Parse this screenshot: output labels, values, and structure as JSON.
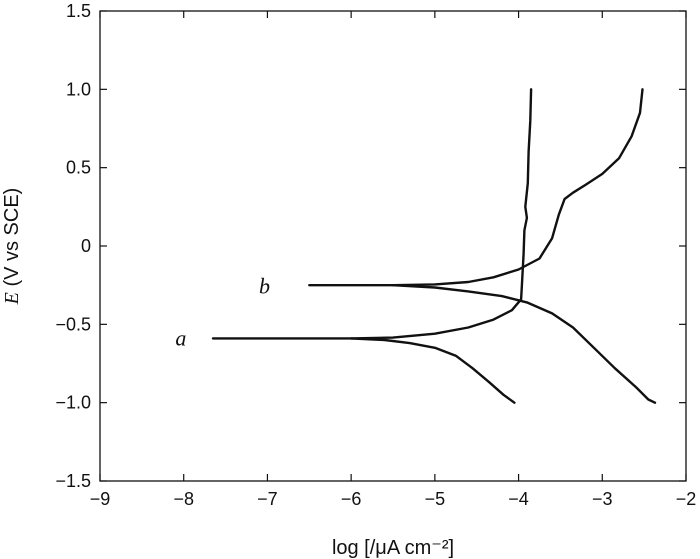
{
  "chart_data": {
    "type": "line",
    "title": "",
    "xlabel": "log [/μA cm⁻²]",
    "ylabel": "E (V vs SCE)",
    "xlim": [
      -9,
      -2
    ],
    "ylim": [
      -1.5,
      1.5
    ],
    "x_ticks": [
      -9,
      -8,
      -7,
      -6,
      -5,
      -4,
      -3,
      -2
    ],
    "y_ticks": [
      -1.5,
      -1.0,
      -0.5,
      0,
      0.5,
      1.0,
      1.5
    ],
    "x_tick_labels": [
      "−9",
      "−8",
      "−7",
      "−6",
      "−5",
      "−4",
      "−3",
      "−2"
    ],
    "y_tick_labels": [
      "−1.5",
      "−1.0",
      "−0.5",
      "0",
      "0.5",
      "1.0",
      "1.5"
    ],
    "grid": false,
    "series": [
      {
        "name": "a",
        "branches": [
          [
            [
              -7.65,
              -0.59
            ],
            [
              -6.8,
              -0.59
            ],
            [
              -6.0,
              -0.59
            ],
            [
              -5.5,
              -0.585
            ],
            [
              -5.0,
              -0.56
            ],
            [
              -4.6,
              -0.52
            ],
            [
              -4.3,
              -0.47
            ],
            [
              -4.08,
              -0.41
            ],
            [
              -3.97,
              -0.34
            ],
            [
              -3.96,
              -0.25
            ],
            [
              -3.94,
              -0.05
            ],
            [
              -3.93,
              0.1
            ],
            [
              -3.9,
              0.18
            ],
            [
              -3.92,
              0.25
            ],
            [
              -3.89,
              0.4
            ],
            [
              -3.88,
              0.6
            ],
            [
              -3.86,
              0.8
            ],
            [
              -3.85,
              1.0
            ]
          ],
          [
            [
              -6.0,
              -0.59
            ],
            [
              -5.6,
              -0.6
            ],
            [
              -5.3,
              -0.62
            ],
            [
              -5.0,
              -0.65
            ],
            [
              -4.75,
              -0.7
            ],
            [
              -4.55,
              -0.78
            ],
            [
              -4.35,
              -0.87
            ],
            [
              -4.18,
              -0.95
            ],
            [
              -4.05,
              -1.0
            ]
          ]
        ]
      },
      {
        "name": "b",
        "branches": [
          [
            [
              -6.5,
              -0.25
            ],
            [
              -6.0,
              -0.25
            ],
            [
              -5.5,
              -0.25
            ],
            [
              -5.0,
              -0.245
            ],
            [
              -4.6,
              -0.23
            ],
            [
              -4.3,
              -0.2
            ],
            [
              -4.0,
              -0.15
            ],
            [
              -3.75,
              -0.08
            ],
            [
              -3.6,
              0.05
            ],
            [
              -3.52,
              0.2
            ],
            [
              -3.45,
              0.3
            ],
            [
              -3.35,
              0.34
            ],
            [
              -3.2,
              0.39
            ],
            [
              -3.0,
              0.46
            ],
            [
              -2.8,
              0.56
            ],
            [
              -2.65,
              0.7
            ],
            [
              -2.55,
              0.85
            ],
            [
              -2.52,
              1.0
            ]
          ],
          [
            [
              -5.5,
              -0.25
            ],
            [
              -5.0,
              -0.265
            ],
            [
              -4.6,
              -0.29
            ],
            [
              -4.2,
              -0.32
            ],
            [
              -3.9,
              -0.36
            ],
            [
              -3.6,
              -0.43
            ],
            [
              -3.35,
              -0.52
            ],
            [
              -3.1,
              -0.65
            ],
            [
              -2.85,
              -0.78
            ],
            [
              -2.6,
              -0.9
            ],
            [
              -2.45,
              -0.98
            ],
            [
              -2.37,
              -1.0
            ]
          ]
        ]
      }
    ],
    "annotations": [
      {
        "text": "a",
        "x": -8.1,
        "y": -0.59
      },
      {
        "text": "b",
        "x": -7.1,
        "y": -0.26
      }
    ]
  }
}
